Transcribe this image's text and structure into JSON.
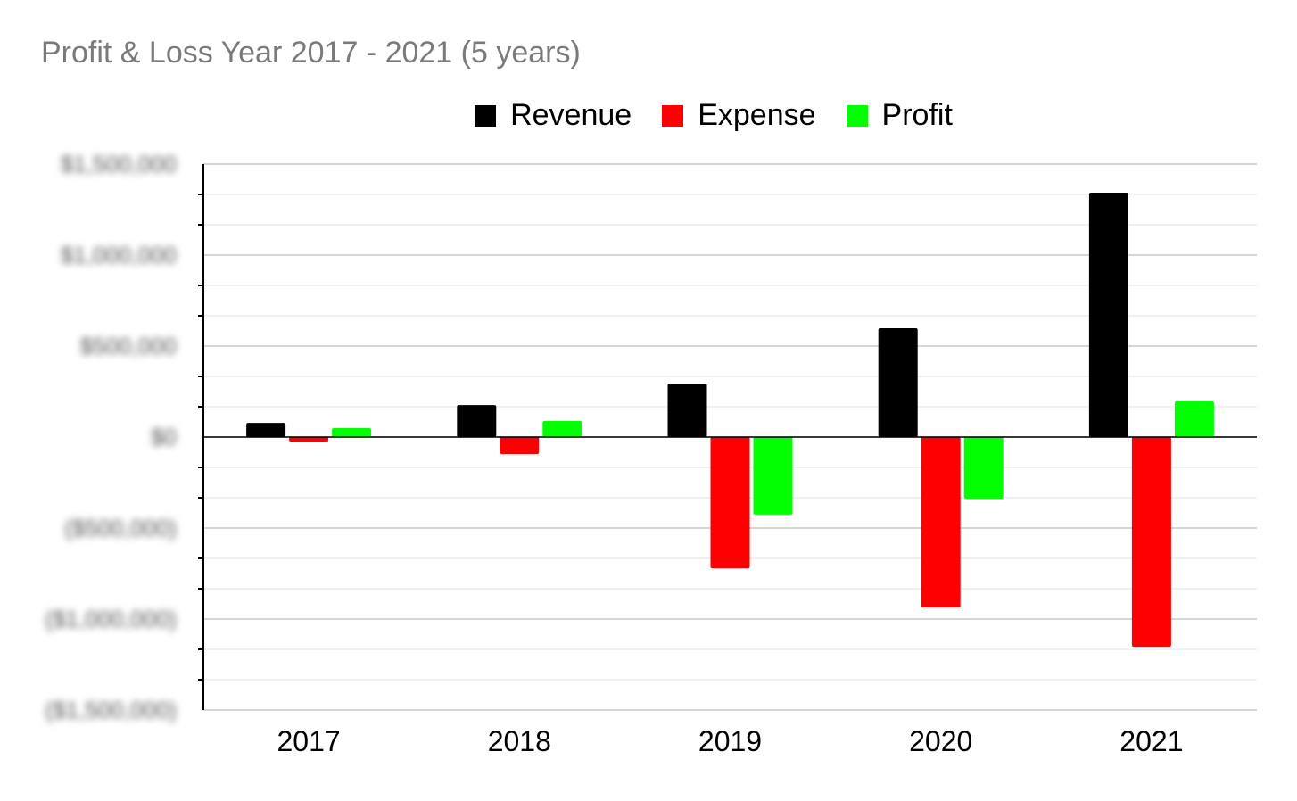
{
  "chart_data": {
    "type": "bar",
    "title": "Profit & Loss Year 2017 - 2021 (5 years)",
    "categories": [
      "2017",
      "2018",
      "2019",
      "2020",
      "2021"
    ],
    "series": [
      {
        "name": "Revenue",
        "color": "#000000",
        "values": [
          78000,
          176000,
          294000,
          598000,
          1343000
        ]
      },
      {
        "name": "Expense",
        "color": "#ff0000",
        "values": [
          -25000,
          -93000,
          -721000,
          -936000,
          -1152000
        ]
      },
      {
        "name": "Profit",
        "color": "#00ff00",
        "values": [
          49000,
          88000,
          -426000,
          -338000,
          196000
        ]
      }
    ],
    "ylim": [
      -1500000,
      1500000
    ],
    "yticks": [
      1500000,
      1000000,
      500000,
      0,
      -500000,
      -1000000,
      -1500000
    ],
    "ytick_labels": [
      "$1,500,000",
      "$1,000,000",
      "$500,000",
      "$0",
      "($500,000)",
      "($1,000,000)",
      "($1,500,000)"
    ],
    "ytick_labels_blurred": true,
    "grid": true,
    "legend_position": "top"
  }
}
